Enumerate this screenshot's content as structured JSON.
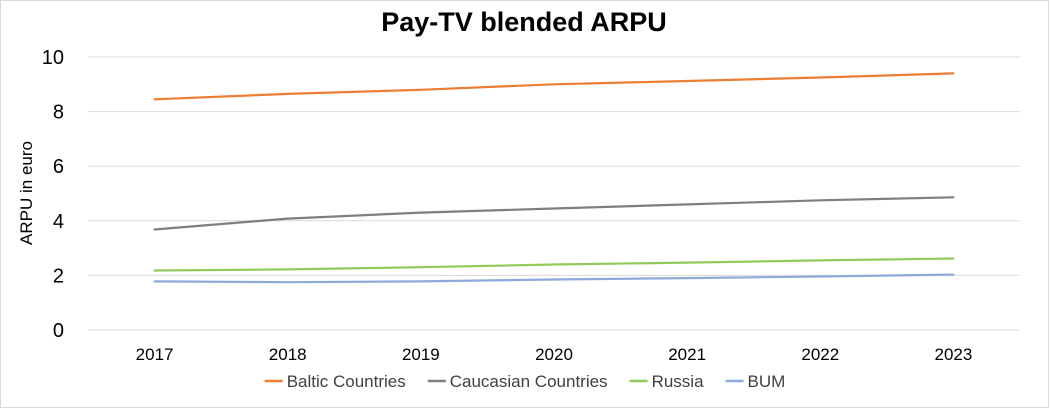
{
  "chart_data": {
    "type": "line",
    "title": "Pay-TV blended ARPU",
    "xlabel": "",
    "ylabel": "ARPU in euro",
    "x": [
      "2017",
      "2018",
      "2019",
      "2020",
      "2021",
      "2022",
      "2023"
    ],
    "ylim": [
      0,
      10
    ],
    "yticks": [
      "0",
      "2",
      "4",
      "6",
      "8",
      "10"
    ],
    "grid": true,
    "legend_position": "bottom",
    "series": [
      {
        "name": "Baltic Countries",
        "color": "#ED7D31",
        "values": [
          8.45,
          8.65,
          8.8,
          9.0,
          9.12,
          9.25,
          9.4
        ]
      },
      {
        "name": "Caucasian Countries",
        "color": "#7F7F7F",
        "values": [
          3.68,
          4.08,
          4.3,
          4.45,
          4.6,
          4.75,
          4.86
        ]
      },
      {
        "name": "Russia",
        "color": "#8FCA5A",
        "values": [
          2.18,
          2.22,
          2.3,
          2.4,
          2.47,
          2.55,
          2.62
        ]
      },
      {
        "name": "BUM",
        "color": "#8EA9DB",
        "values": [
          1.78,
          1.75,
          1.78,
          1.85,
          1.9,
          1.96,
          2.03
        ]
      }
    ]
  }
}
